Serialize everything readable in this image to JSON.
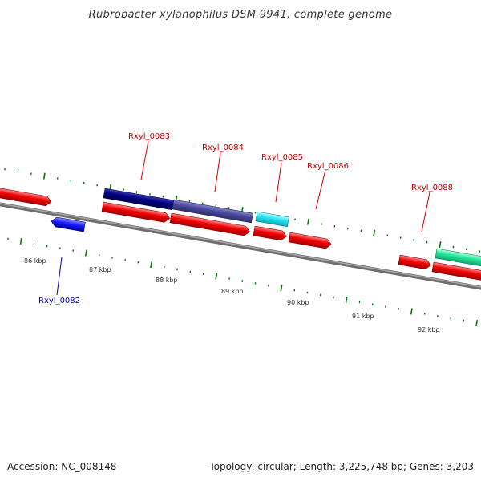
{
  "title": "Rubrobacter xylanophilus DSM 9941, complete genome",
  "footer": {
    "accession": "Accession: NC_008148",
    "summary": "Topology: circular; Length: 3,225,748 bp; Genes: 3,203"
  },
  "scale": {
    "labels": [
      "86 kbp",
      "87 kbp",
      "88 kbp",
      "89 kbp",
      "90 kbp",
      "91 kbp",
      "92 kbp"
    ]
  },
  "genes": [
    {
      "label": "Rxyl_0082",
      "color": "#0000cc",
      "feature_color": "#1a1aff"
    },
    {
      "label": "Rxyl_0083",
      "color": "#cc0000",
      "feature_color": "#000080"
    },
    {
      "label": "Rxyl_0084",
      "color": "#cc0000",
      "feature_color": "#4b4a9a"
    },
    {
      "label": "Rxyl_0085",
      "color": "#cc0000",
      "feature_color": "#22e5f0"
    },
    {
      "label": "Rxyl_0086",
      "color": "#cc0000",
      "feature_color": "#ff0000"
    },
    {
      "label": "Rxyl_0088",
      "color": "#cc0000",
      "feature_color": "#22e59a"
    }
  ],
  "colors": {
    "backbone": "#8c8c8c",
    "cds": "#ee0000",
    "tick": "#007a00"
  }
}
